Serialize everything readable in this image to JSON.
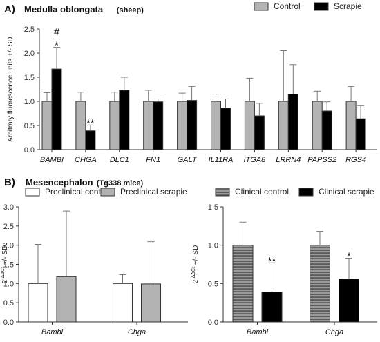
{
  "colors": {
    "control_gray": "#b3b3b3",
    "black": "#000000",
    "white": "#ffffff",
    "error_bar": "#777777"
  },
  "chart_data": [
    {
      "id": "A",
      "type": "bar",
      "panel_letter": "A)",
      "title": "Medulla oblongata",
      "subtitle": "(sheep)",
      "ylabel": "Arbitrary fluorescence units +/- SD",
      "ylim": [
        0,
        2.5
      ],
      "yticks": [
        "0.0",
        "0.5",
        "1.0",
        "1.5",
        "2.0",
        "2.5"
      ],
      "categories": [
        "BAMBI",
        "CHGA",
        "DLC1",
        "FN1",
        "GALT",
        "IL11RA",
        "ITGA8",
        "LRRN4",
        "PAPSS2",
        "RGS4"
      ],
      "legend_position": "top-right",
      "series": [
        {
          "name": "Control",
          "fill": "#b3b3b3",
          "pattern": "solid",
          "values": [
            1.0,
            1.0,
            1.0,
            1.0,
            1.0,
            1.0,
            1.0,
            1.0,
            1.0,
            1.0
          ],
          "sd": [
            0.18,
            0.19,
            0.19,
            0.23,
            0.17,
            0.15,
            0.48,
            1.05,
            0.21,
            0.31
          ]
        },
        {
          "name": "Scrapie",
          "fill": "#000000",
          "pattern": "solid",
          "values": [
            1.67,
            0.39,
            1.23,
            0.99,
            1.02,
            0.86,
            0.7,
            1.15,
            0.8,
            0.64
          ],
          "sd": [
            0.45,
            0.12,
            0.27,
            0.06,
            0.29,
            0.19,
            0.26,
            0.61,
            0.19,
            0.27
          ]
        }
      ],
      "annotations": [
        {
          "category": "BAMBI",
          "series": "Scrapie",
          "lines": [
            "#",
            "*"
          ]
        },
        {
          "category": "CHGA",
          "series": "Scrapie",
          "lines": [
            "**"
          ]
        }
      ],
      "grid": false
    },
    {
      "id": "B-left",
      "type": "bar",
      "panel_letter": "B)",
      "title": "Mesencephalon",
      "subtitle": "(Tg338 mice)",
      "ylabel": "2",
      "ylabel_superscript": "-ΔΔCt",
      "ylabel_suffix": " +/- SD",
      "ylim": [
        0,
        3.0
      ],
      "yticks": [
        "0.0",
        "0.5",
        "1.0",
        "1.5",
        "2.0",
        "2.5",
        "3.0"
      ],
      "categories": [
        "Bambi",
        "Chga"
      ],
      "legend_position": "top",
      "series": [
        {
          "name": "Preclinical control",
          "fill": "#ffffff",
          "pattern": "solid",
          "values": [
            1.0,
            1.0
          ],
          "sd": [
            1.02,
            0.23
          ]
        },
        {
          "name": "Preclinical scrapie",
          "fill": "#b3b3b3",
          "pattern": "solid",
          "values": [
            1.18,
            0.99
          ],
          "sd": [
            1.71,
            1.1
          ]
        }
      ],
      "annotations": [],
      "grid": false
    },
    {
      "id": "B-right",
      "type": "bar",
      "ylabel": "2",
      "ylabel_superscript": "-ΔΔCt",
      "ylabel_suffix": " +/- SD",
      "ylim": [
        0,
        1.5
      ],
      "yticks": [
        "0.0",
        "0.5",
        "1.0",
        "1.5"
      ],
      "categories": [
        "Bambi",
        "Chga"
      ],
      "legend_position": "top",
      "series": [
        {
          "name": "Clinical control",
          "fill": "#9a9a9a",
          "pattern": "horizontal-stripes",
          "values": [
            1.0,
            1.0
          ],
          "sd": [
            0.3,
            0.18
          ]
        },
        {
          "name": "Clinical scrapie",
          "fill": "#000000",
          "pattern": "solid",
          "values": [
            0.39,
            0.56
          ],
          "sd": [
            0.38,
            0.27
          ]
        }
      ],
      "annotations": [
        {
          "category": "Bambi",
          "series": "Clinical scrapie",
          "lines": [
            "**"
          ]
        },
        {
          "category": "Chga",
          "series": "Clinical scrapie",
          "lines": [
            "*"
          ]
        }
      ],
      "grid": false
    }
  ]
}
